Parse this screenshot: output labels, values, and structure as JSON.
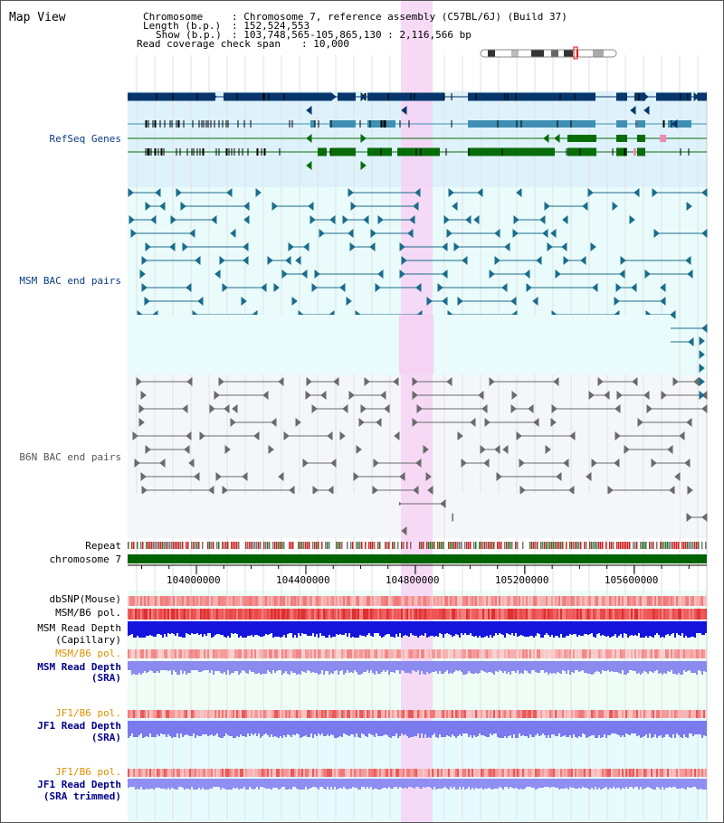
{
  "title": "Map View",
  "header": {
    "chromosome_key": "Chromosome",
    "chromosome_val": ": Chromosome 7, reference assembly (C57BL/6J) (Build 37)",
    "length_key": "Length (b.p.)",
    "length_val": ": 152,524,553",
    "show_key": "Show (b.p.)",
    "show_val": ": 103,748,565-105,865,130 : 2,116,566 bp",
    "span_key": "Read coverage check span",
    "span_val": ": 10,000"
  },
  "tracks": {
    "refseq": "RefSeq Genes",
    "msm_bac": "MSM BAC end pairs",
    "b6n_bac": "B6N BAC end pairs",
    "repeat": "Repeat",
    "chromosome": "chromosome 7",
    "dbsnp": "dbSNP(Mouse)",
    "msm_b6_pol_1": "MSM/B6 pol.",
    "msm_read_depth_cap_1": "MSM Read Depth",
    "msm_read_depth_cap_2": "(Capillary)",
    "msm_b6_pol_2": "MSM/B6 pol.",
    "msm_read_depth_sra_1": "MSM Read Depth",
    "msm_read_depth_sra_2": "(SRA)",
    "jf1_b6_pol_1": "JF1/B6 pol.",
    "jf1_read_depth_sra_1": "JF1 Read Depth",
    "jf1_read_depth_sra_2": "(SRA)",
    "jf1_b6_pol_2": "JF1/B6 pol.",
    "jf1_read_depth_trim_1": "JF1 Read Depth",
    "jf1_read_depth_trim_2": "(SRA trimmed)"
  },
  "axis": {
    "ticks": [
      {
        "pos": 104000000,
        "label": "104000000"
      },
      {
        "pos": 104400000,
        "label": "104400000"
      },
      {
        "pos": 104800000,
        "label": "104800000"
      },
      {
        "pos": 105200000,
        "label": "105200000"
      },
      {
        "pos": 105600000,
        "label": "105600000"
      }
    ],
    "start": 103748565,
    "end": 105865130
  },
  "colors": {
    "refseq_bg": "#ddf2fb",
    "msm_bg": "#e9fbfb",
    "b6n_bg": "#f4f6f9",
    "highlight": "#f6d3f4",
    "gene_dark": "#06366b",
    "gene_mid": "#3f8fb3",
    "gene_green": "#086c08",
    "msm_bac": "#1b6c8c",
    "b6n_bac": "#6a6a6a",
    "chromosome": "#006400",
    "msm_label": "#0a3d84",
    "pol_label": "#e09000",
    "depth_label": "#00008b"
  }
}
